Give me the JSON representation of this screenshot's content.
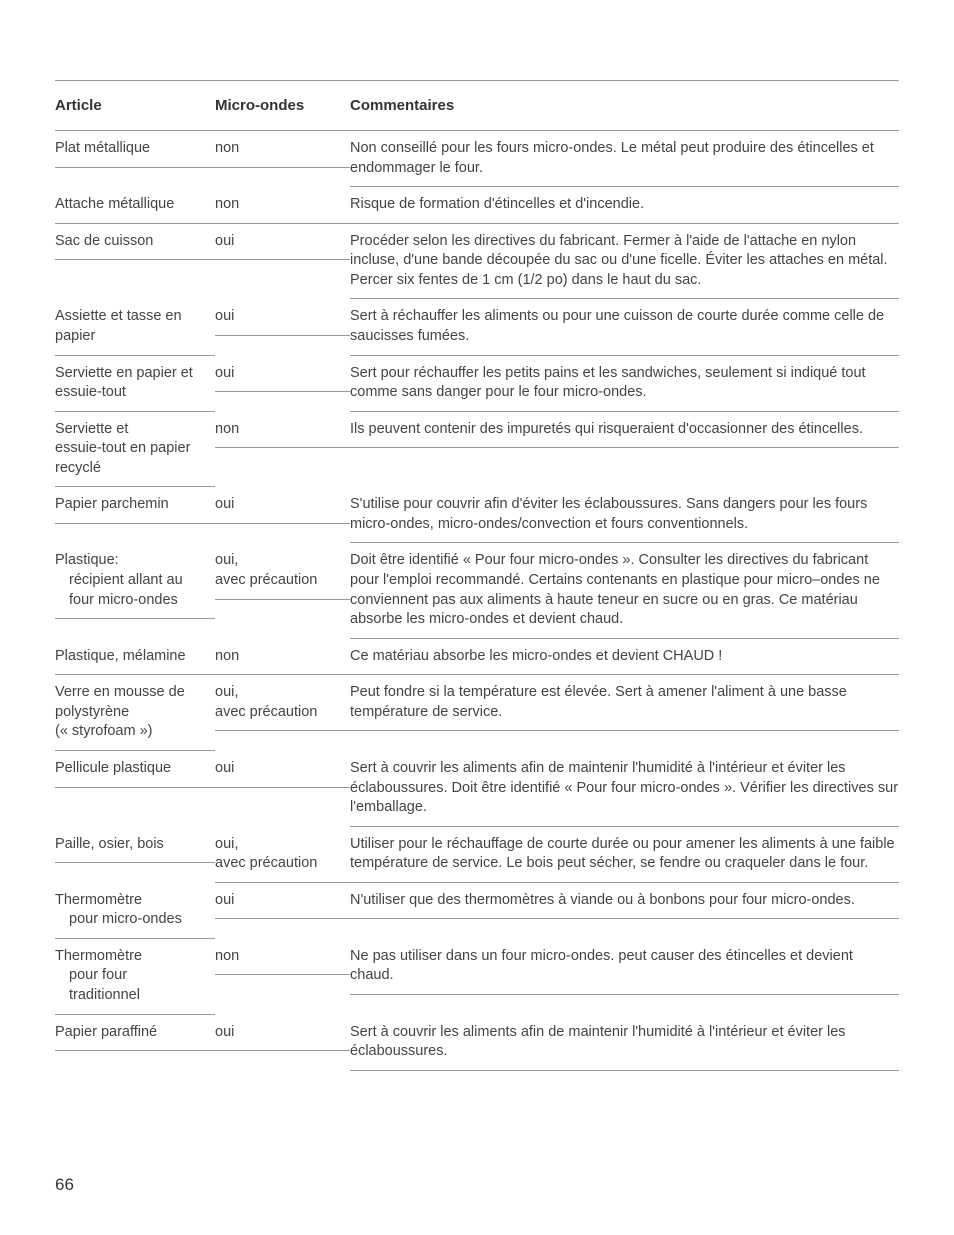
{
  "table": {
    "headers": {
      "article": "Article",
      "micro": "Micro-ondes",
      "comment": "Commentaires"
    },
    "rows": [
      {
        "article_lines": [
          "Plat métallique"
        ],
        "article_indent": [
          false
        ],
        "micro_lines": [
          "non"
        ],
        "comment": "Non conseillé pour les fours micro-ondes. Le métal peut produire des étincelles et endommager le four."
      },
      {
        "article_lines": [
          "Attache métallique"
        ],
        "article_indent": [
          false
        ],
        "micro_lines": [
          "non"
        ],
        "comment": "Risque de formation d'étincelles et d'incendie."
      },
      {
        "article_lines": [
          "Sac de cuisson"
        ],
        "article_indent": [
          false
        ],
        "micro_lines": [
          "oui"
        ],
        "comment": "Procéder selon les directives du fabricant. Fermer à l'aide de l'attache en nylon incluse, d'une bande découpée du sac ou d'une ficelle. Éviter les attaches en métal. Percer six fentes de 1 cm (1/2 po) dans le haut du sac."
      },
      {
        "article_lines": [
          "Assiette et tasse en",
          "papier"
        ],
        "article_indent": [
          false,
          false
        ],
        "micro_lines": [
          "oui"
        ],
        "comment": "Sert à réchauffer les aliments ou pour une cuisson de courte durée comme celle de saucisses fumées."
      },
      {
        "article_lines": [
          "Serviette en papier et",
          "essuie-tout"
        ],
        "article_indent": [
          false,
          false
        ],
        "micro_lines": [
          "oui"
        ],
        "comment": "Sert pour réchauffer les petits pains et les sandwiches, seulement si indiqué tout comme sans danger pour le four micro-ondes."
      },
      {
        "article_lines": [
          "Serviette et",
          "essuie-tout en papier",
          "recyclé"
        ],
        "article_indent": [
          false,
          false,
          false
        ],
        "micro_lines": [
          "non"
        ],
        "comment": "Ils peuvent contenir des impuretés qui risqueraient d'occasionner des étincelles."
      },
      {
        "article_lines": [
          "Papier parchemin"
        ],
        "article_indent": [
          false
        ],
        "micro_lines": [
          "oui"
        ],
        "comment": "S'utilise pour couvrir afin d'éviter les éclaboussures. Sans dangers pour les fours micro-ondes, micro-ondes/convection et fours conventionnels."
      },
      {
        "article_lines": [
          "Plastique:",
          "récipient allant au",
          "four micro-ondes"
        ],
        "article_indent": [
          false,
          true,
          true
        ],
        "micro_lines": [
          "oui,",
          "avec précaution"
        ],
        "comment": "Doit être identifié « Pour four micro-ondes ». Consulter les directives du fabricant pour l'emploi recommandé. Certains contenants en plastique pour micro–ondes ne conviennent pas aux aliments à haute teneur en sucre ou en gras. Ce matériau absorbe les micro-ondes et devient chaud."
      },
      {
        "article_lines": [
          "Plastique, mélamine"
        ],
        "article_indent": [
          false
        ],
        "micro_lines": [
          "non"
        ],
        "comment": "Ce matériau absorbe les micro-ondes et devient CHAUD !"
      },
      {
        "article_lines": [
          "Verre en mousse de",
          "polystyrène",
          "(« styrofoam »)"
        ],
        "article_indent": [
          false,
          false,
          false
        ],
        "micro_lines": [
          "oui,",
          "avec précaution"
        ],
        "comment": "Peut fondre si la température est élevée. Sert à amener l'aliment à une basse température de service."
      },
      {
        "article_lines": [
          "Pellicule plastique"
        ],
        "article_indent": [
          false
        ],
        "micro_lines": [
          "oui"
        ],
        "comment": "Sert à couvrir les aliments afin de maintenir l'humidité à l'intérieur et éviter les éclaboussures. Doit être identifié « Pour four micro-ondes ». Vérifier les directives sur l'emballage."
      },
      {
        "article_lines": [
          "Paille, osier, bois"
        ],
        "article_indent": [
          false
        ],
        "micro_lines": [
          "oui,",
          "avec précaution"
        ],
        "comment": "Utiliser pour le réchauffage de courte durée ou pour amener les aliments à une faible température de service. Le bois peut sécher, se fendre ou craqueler dans le four."
      },
      {
        "article_lines": [
          "Thermomètre",
          "pour micro-ondes"
        ],
        "article_indent": [
          false,
          true
        ],
        "micro_lines": [
          "oui"
        ],
        "comment": "N'utiliser que des thermomètres à viande ou à bonbons pour four micro-ondes."
      },
      {
        "article_lines": [
          "Thermomètre",
          "pour four",
          "traditionnel"
        ],
        "article_indent": [
          false,
          true,
          true
        ],
        "micro_lines": [
          "non"
        ],
        "comment": "Ne pas utiliser dans un four micro-ondes. peut causer des étincelles et devient chaud."
      },
      {
        "article_lines": [
          "Papier paraffiné"
        ],
        "article_indent": [
          false
        ],
        "micro_lines": [
          "oui"
        ],
        "comment": "Sert à couvrir les aliments afin de maintenir l'humidité à l'intérieur et éviter les éclaboussures."
      }
    ]
  },
  "page_number": "66"
}
